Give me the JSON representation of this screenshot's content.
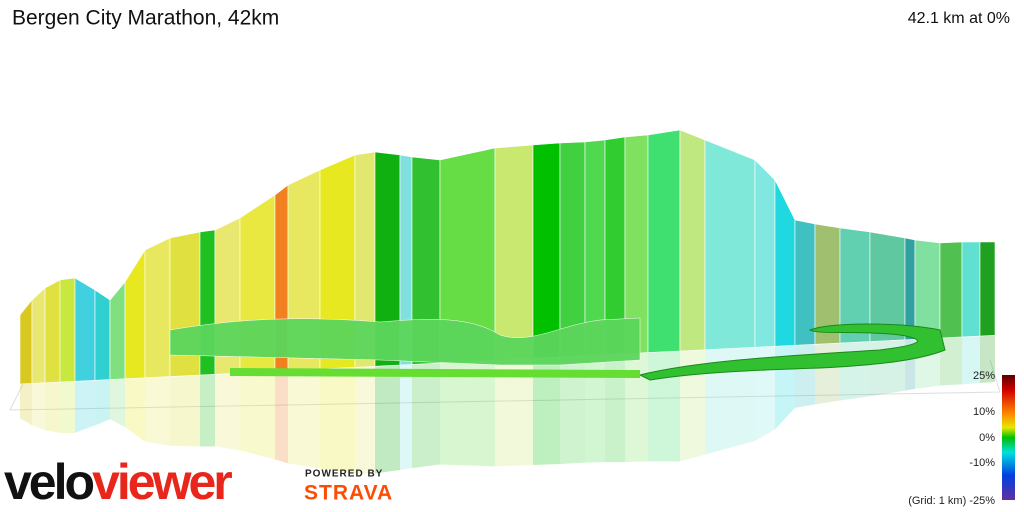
{
  "header": {
    "title": "Bergen City Marathon, 42km",
    "stat": "42.1 km at 0%"
  },
  "legend": {
    "labels": [
      "25%",
      "10%",
      "0%",
      "-10%",
      "(Grid: 1 km) -25%"
    ]
  },
  "branding": {
    "logo_parts": [
      "velo",
      "viewer"
    ],
    "powered_by": "POWERED BY",
    "partner": "STRAVA"
  }
}
